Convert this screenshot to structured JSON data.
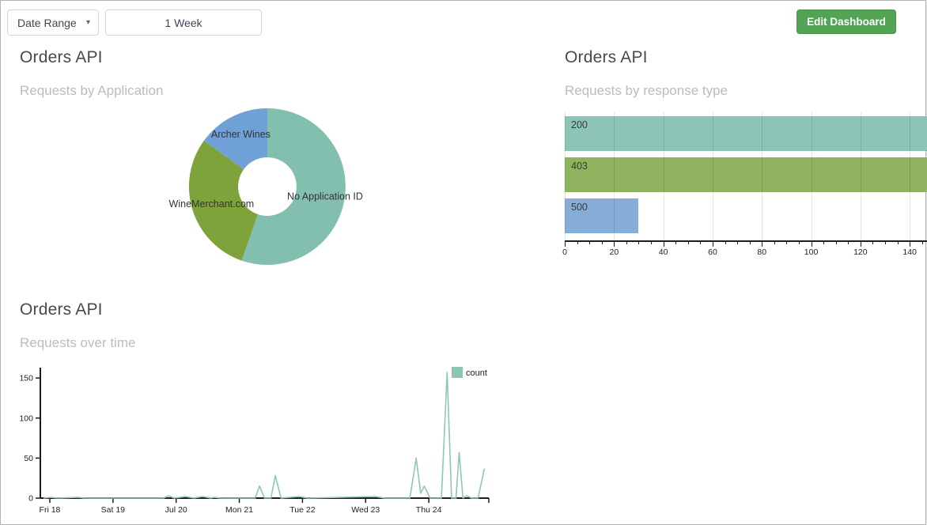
{
  "toolbar": {
    "date_range_label": "Date Range",
    "caret_icon": "▾",
    "period_value": "1 Week",
    "edit_button_label": "Edit Dashboard"
  },
  "colors": {
    "button_green": "#53a355",
    "title_text": "#4a4a4a",
    "subtitle_text": "#b9bcbe",
    "donut_teal": "#82bfae",
    "donut_green": "#7da33a",
    "donut_blue": "#6fa0d6",
    "bar_teal": "#8cc5b5",
    "bar_green": "#8fb35e",
    "bar_blue": "#86add5",
    "line_teal": "#8fc7b7",
    "axis": "#1d1d1d"
  },
  "panels": {
    "by_application": {
      "title": "Orders API",
      "subtitle": "Requests by Application"
    },
    "by_response_type": {
      "title": "Orders API",
      "subtitle": "Requests by response type"
    },
    "over_time": {
      "title": "Orders API",
      "subtitle": "Requests over time"
    }
  },
  "chart_data": [
    {
      "type": "pie",
      "title": "Orders API — Requests by Application",
      "donut": true,
      "labels": [
        "No Application ID",
        "WineMerchant.com",
        "Archer Wines"
      ],
      "values": [
        55.3,
        29.7,
        15.0
      ],
      "unit": "percent-of-circle",
      "colors": [
        "#82bfae",
        "#7da33a",
        "#6fa0d6"
      ]
    },
    {
      "type": "bar",
      "title": "Orders API — Requests by response type",
      "orientation": "horizontal",
      "categories": [
        "200",
        "403",
        "500"
      ],
      "values": [
        147,
        147,
        30
      ],
      "xlim": [
        0,
        147
      ],
      "xticks": [
        0,
        20,
        40,
        60,
        80,
        100,
        120,
        140
      ],
      "minor_tick_step": 5,
      "grid": true,
      "colors": [
        "#8cc5b5",
        "#8fb35e",
        "#86add5"
      ]
    },
    {
      "type": "line",
      "title": "Orders API — Requests over time",
      "legend": [
        "count"
      ],
      "legend_position": "top-right",
      "xtick_labels": [
        "Fri 18",
        "Sat 19",
        "Jul 20",
        "Mon 21",
        "Tue 22",
        "Wed 23",
        "Thu 24"
      ],
      "xtick_days": [
        18,
        19,
        20,
        21,
        22,
        23,
        24
      ],
      "xlim": [
        17.85,
        24.95
      ],
      "ylim": [
        0,
        160
      ],
      "yticks": [
        0,
        50,
        100,
        150
      ],
      "grid": false,
      "points": [
        [
          17.9,
          0
        ],
        [
          18.02,
          1
        ],
        [
          18.12,
          0
        ],
        [
          18.45,
          1
        ],
        [
          18.55,
          0
        ],
        [
          19.8,
          0
        ],
        [
          19.88,
          3
        ],
        [
          19.97,
          0
        ],
        [
          20.15,
          2
        ],
        [
          20.28,
          0
        ],
        [
          20.42,
          2
        ],
        [
          20.55,
          0
        ],
        [
          20.6,
          1
        ],
        [
          20.7,
          0
        ],
        [
          21.25,
          0
        ],
        [
          21.32,
          15
        ],
        [
          21.4,
          0
        ],
        [
          21.5,
          0
        ],
        [
          21.57,
          28
        ],
        [
          21.66,
          0
        ],
        [
          21.95,
          2
        ],
        [
          22.08,
          0
        ],
        [
          23.15,
          2
        ],
        [
          23.3,
          0
        ],
        [
          23.7,
          0
        ],
        [
          23.8,
          50
        ],
        [
          23.87,
          6
        ],
        [
          23.93,
          15
        ],
        [
          24.02,
          0
        ],
        [
          24.2,
          0
        ],
        [
          24.29,
          157
        ],
        [
          24.36,
          0
        ],
        [
          24.43,
          0
        ],
        [
          24.48,
          57
        ],
        [
          24.54,
          0
        ],
        [
          24.6,
          3
        ],
        [
          24.68,
          0
        ],
        [
          24.78,
          0
        ],
        [
          24.88,
          37
        ]
      ]
    }
  ]
}
